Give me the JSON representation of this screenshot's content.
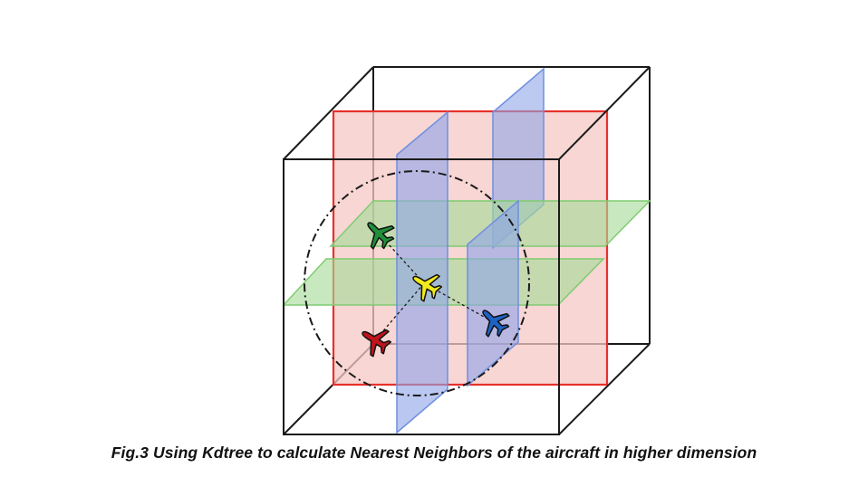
{
  "caption": "Fig.3 Using Kdtree to calculate Nearest Neighbors of the aircraft in higher dimension",
  "colors": {
    "cube_edge": "#1a1a1a",
    "red_plane_fill": "#f4c8c6",
    "red_plane_stroke": "#e8302a",
    "blue_plane_fill": "#8fa5e8",
    "blue_plane_stroke": "#6f8fe0",
    "green_plane_fill": "#a6dc98",
    "green_plane_stroke": "#7fcc70",
    "search_circle": "#1a1a1a"
  },
  "aircraft": [
    {
      "name": "query-aircraft",
      "color": "#f3ea1c",
      "icon": "airplane-icon"
    },
    {
      "name": "green-aircraft",
      "color": "#1f8f3a",
      "icon": "airplane-icon"
    },
    {
      "name": "blue-aircraft",
      "color": "#1d63c4",
      "icon": "airplane-icon"
    },
    {
      "name": "red-aircraft",
      "color": "#c0141c",
      "icon": "airplane-icon"
    }
  ]
}
